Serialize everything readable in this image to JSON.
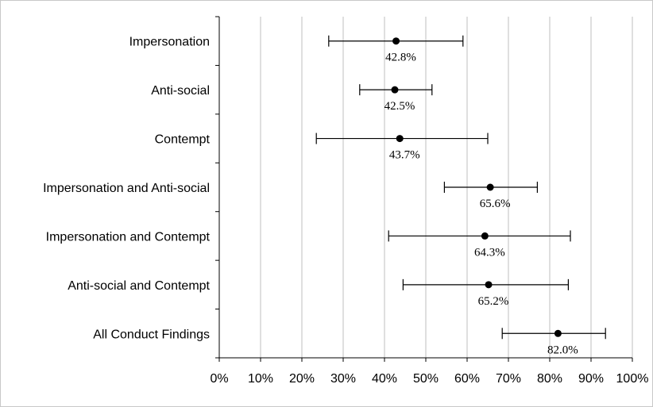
{
  "chart_data": {
    "type": "scatter",
    "orientation": "horizontal",
    "title": "",
    "xlabel": "",
    "ylabel": "",
    "xlim": [
      0,
      100
    ],
    "x_ticks": [
      "0%",
      "10%",
      "20%",
      "30%",
      "40%",
      "50%",
      "60%",
      "70%",
      "80%",
      "90%",
      "100%"
    ],
    "grid": "vertical",
    "categories": [
      "Impersonation",
      "Anti-social",
      "Contempt",
      "Impersonation and Anti-social",
      "Impersonation and Contempt",
      "Anti-social and Contempt",
      "All Conduct Findings"
    ],
    "values": [
      42.8,
      42.5,
      43.7,
      65.6,
      64.3,
      65.2,
      82.0
    ],
    "ci_low": [
      26.5,
      34.0,
      23.5,
      54.5,
      41.0,
      44.5,
      68.5
    ],
    "ci_high": [
      59.0,
      51.5,
      65.0,
      77.0,
      85.0,
      84.5,
      93.5
    ],
    "data_labels": [
      "42.8%",
      "42.5%",
      "43.7%",
      "65.6%",
      "64.3%",
      "65.2%",
      "82.0%"
    ],
    "colors": {
      "marker": "#000000",
      "grid": "#bfbfbf",
      "axis": "#000000"
    }
  }
}
